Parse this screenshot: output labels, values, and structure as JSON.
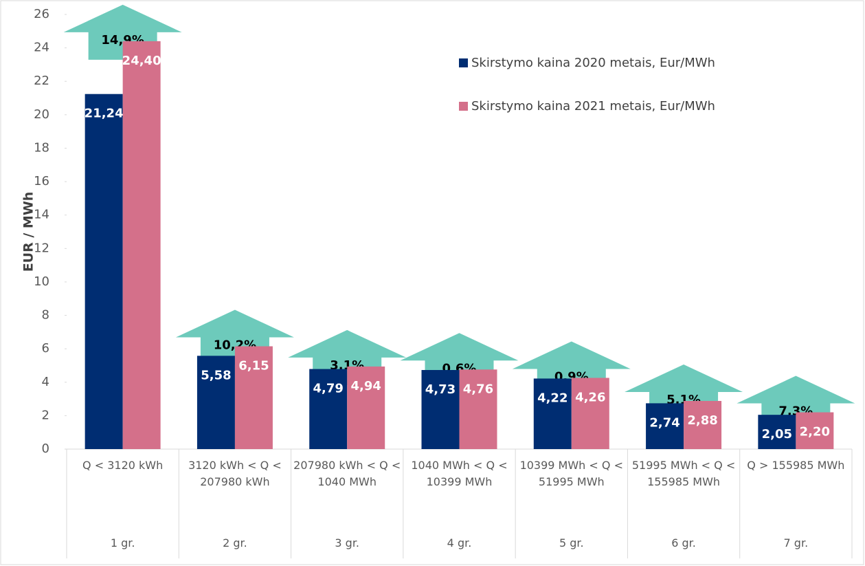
{
  "chart_data": {
    "type": "bar",
    "y_label": "EUR / MWh",
    "categories": [
      "Q < 3120 kWh",
      "3120 kWh < Q < 207980 kWh",
      "207980 kWh < Q < 1040 MWh",
      "1040 MWh < Q < 10399 MWh",
      "10399 MWh < Q < 51995 MWh",
      "51995 MWh < Q < 155985 MWh",
      "Q > 155985 MWh"
    ],
    "groups": [
      "1 gr.",
      "2 gr.",
      "3 gr.",
      "4 gr.",
      "5 gr.",
      "6 gr.",
      "7 gr."
    ],
    "series": [
      {
        "name": "Skirstymo kaina 2020 metais, Eur/MWh",
        "color": "#002d72",
        "values": [
          21.24,
          5.58,
          4.79,
          4.73,
          4.22,
          2.74,
          2.05
        ],
        "value_labels": [
          "21,24",
          "5,58",
          "4,79",
          "4,73",
          "4,22",
          "2,74",
          "2,05"
        ]
      },
      {
        "name": "Skirstymo kaina 2021 metais, Eur/MWh",
        "color": "#d4708a",
        "values": [
          24.4,
          6.15,
          4.94,
          4.76,
          4.26,
          2.88,
          2.2
        ],
        "value_labels": [
          "24,40",
          "6,15",
          "4,94",
          "4,76",
          "4,26",
          "2,88",
          "2,20"
        ]
      }
    ],
    "annotations": [
      "14,9%",
      "10,2%",
      "3,1%",
      "0,6%",
      "0,9%",
      "5,1%",
      "7,3%"
    ],
    "annotation_color": "#6dcabb",
    "ylim": [
      0,
      26
    ],
    "yticks": [
      0,
      2,
      4,
      6,
      8,
      10,
      12,
      14,
      16,
      18,
      20,
      22,
      24,
      26
    ],
    "legend": "upper right"
  }
}
